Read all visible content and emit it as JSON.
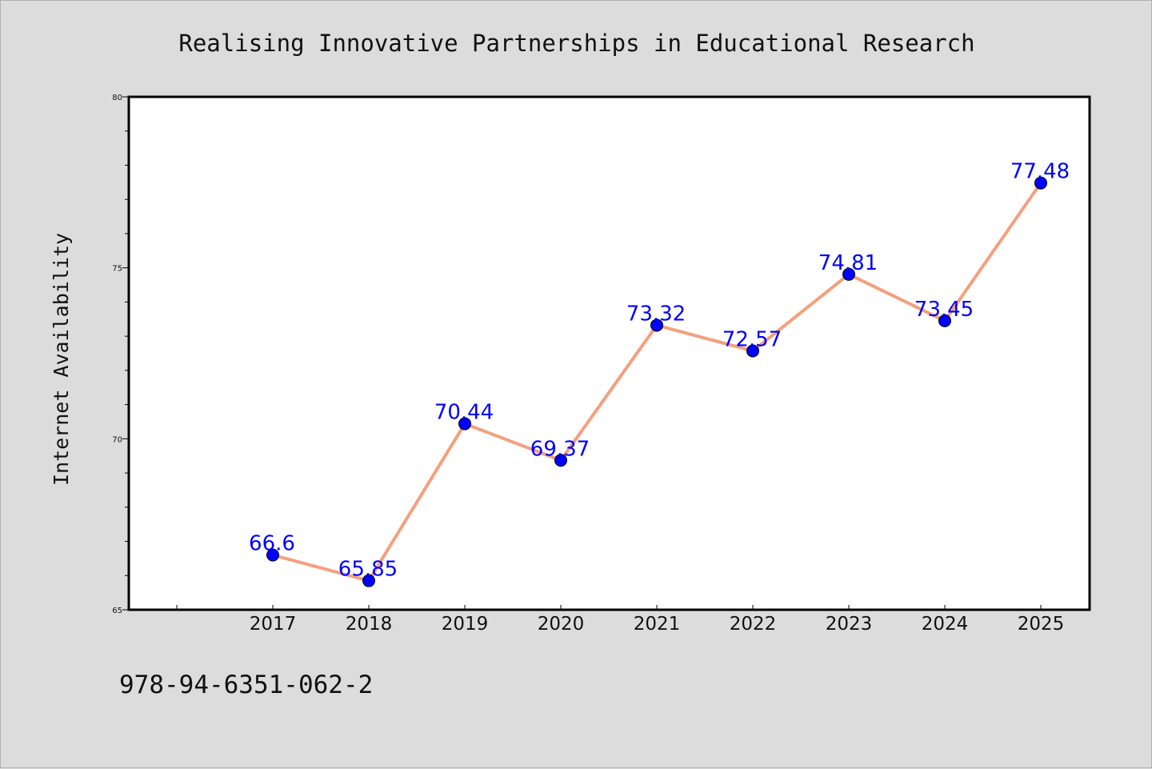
{
  "chart_data": {
    "type": "line",
    "title": "Realising Innovative Partnerships in Educational Research",
    "xlabel": "",
    "ylabel": "Internet Availability",
    "categories": [
      "2017",
      "2018",
      "2019",
      "2020",
      "2021",
      "2022",
      "2023",
      "2024",
      "2025"
    ],
    "values": [
      66.6,
      65.85,
      70.44,
      69.37,
      73.32,
      72.57,
      74.81,
      73.45,
      77.48
    ],
    "data_labels": [
      "66.6",
      "65.85",
      "70.44",
      "69.37",
      "73.32",
      "72.57",
      "74.81",
      "73.45",
      "77.48"
    ],
    "ylim": [
      65,
      80
    ],
    "yticks": [
      65,
      70,
      75,
      80
    ],
    "grid": false,
    "legend": "none",
    "colors": {
      "line": "#f4a07e",
      "marker": "#0000ff",
      "label": "#0000ff",
      "background": "#dcdcdc",
      "plot_bg": "#ffffff"
    }
  },
  "footnote": "978-94-6351-062-2"
}
